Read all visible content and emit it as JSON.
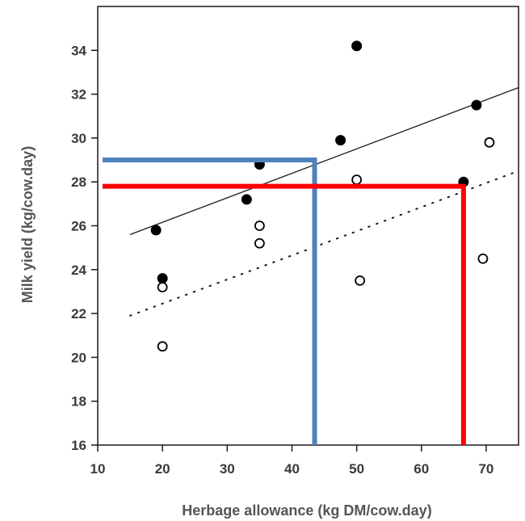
{
  "chart_data": {
    "type": "scatter",
    "title": "",
    "xlabel": "Herbage allowance (kg DM/cow.day)",
    "ylabel": "Milk yield (kg/cow.day)",
    "xlim": [
      10,
      75
    ],
    "ylim": [
      16,
      36
    ],
    "xticks": [
      10,
      20,
      30,
      40,
      50,
      60,
      70
    ],
    "yticks": [
      16,
      18,
      20,
      22,
      24,
      26,
      28,
      30,
      32,
      34
    ],
    "grid": false,
    "legend": "none",
    "series": [
      {
        "marker": "filled-circle",
        "points": [
          [
            19,
            25.8
          ],
          [
            20,
            23.6
          ],
          [
            33,
            27.2
          ],
          [
            35,
            28.8
          ],
          [
            47.5,
            29.9
          ],
          [
            50,
            34.2
          ],
          [
            66.5,
            28
          ],
          [
            68.5,
            31.5
          ]
        ]
      },
      {
        "marker": "open-circle",
        "points": [
          [
            20,
            23.2
          ],
          [
            20,
            20.5
          ],
          [
            35,
            26
          ],
          [
            35,
            25.2
          ],
          [
            50,
            28.1
          ],
          [
            50.5,
            23.5
          ],
          [
            69.5,
            24.5
          ],
          [
            70.5,
            29.8
          ]
        ]
      }
    ],
    "trend_lines": [
      {
        "style": "solid",
        "from": [
          15,
          25.6
        ],
        "to": [
          75,
          32.3
        ]
      },
      {
        "style": "dotted",
        "from": [
          15,
          21.9
        ],
        "to": [
          75,
          28.5
        ]
      }
    ],
    "annotations": [
      {
        "style": "reference-line",
        "color": "#4f81bd",
        "x": 43.5,
        "y": 29
      },
      {
        "style": "reference-line",
        "color": "#ff0000",
        "x": 66.5,
        "y": 27.8
      }
    ]
  }
}
